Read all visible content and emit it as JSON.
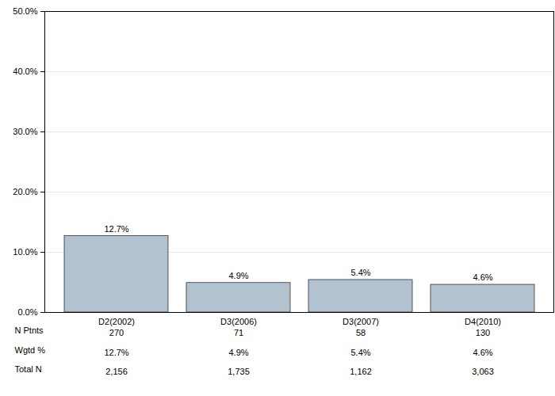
{
  "chart_data": {
    "type": "bar",
    "categories": [
      "D2(2002)",
      "D3(2006)",
      "D3(2007)",
      "D4(2010)"
    ],
    "values": [
      12.7,
      4.9,
      5.4,
      4.6
    ],
    "value_labels": [
      "12.7%",
      "4.9%",
      "5.4%",
      "4.6%"
    ],
    "data_labels": true,
    "color": "#b3c2cf",
    "ylim": [
      0,
      50
    ],
    "yticks": [
      {
        "value": 0,
        "label": "0.0%"
      },
      {
        "value": 10,
        "label": "10.0%"
      },
      {
        "value": 20,
        "label": "20.0%"
      },
      {
        "value": 30,
        "label": "30.0%"
      },
      {
        "value": 40,
        "label": "40.0%"
      },
      {
        "value": 50,
        "label": "50.0%"
      }
    ],
    "grid": true,
    "table": {
      "rows": [
        {
          "label": "N Ptnts",
          "values": [
            "270",
            "71",
            "58",
            "130"
          ]
        },
        {
          "label": "Wgtd %",
          "values": [
            "12.7%",
            "4.9%",
            "5.4%",
            "4.6%"
          ]
        },
        {
          "label": "Total N",
          "values": [
            "2,156",
            "1,735",
            "1,162",
            "3,063"
          ]
        }
      ]
    }
  }
}
